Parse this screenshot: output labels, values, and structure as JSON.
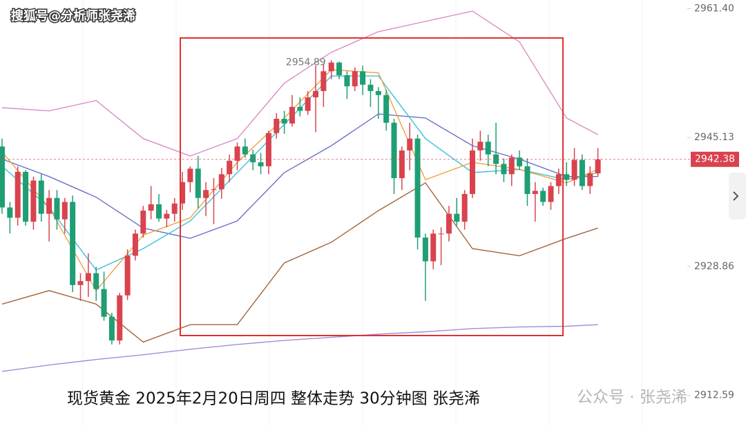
{
  "watermark_top": "搜狐号@分析师张尧浠",
  "caption": "现货黄金 2025年2月20日周四 整体走势 30分钟图 张尧浠",
  "watermark_bottom": "公众号 · 张尧浠",
  "chart_data": {
    "type": "candlestick",
    "up_color": "#d9434e",
    "down_color": "#1f9e74",
    "ylim": [
      2908.7,
      2962.5
    ],
    "yticks": [
      {
        "value": 2961.4,
        "label": "2961.40"
      },
      2945.13,
      2928.86,
      2912.59
    ],
    "last_price": 2942.38,
    "high_annotation": 2954.89,
    "open": [
      2944.0,
      2936.3,
      2935.0,
      2940.8,
      2934.5,
      2939.7,
      2935.5,
      2937.5,
      2934.8,
      2937.0,
      2926.5,
      2927.0,
      2928.0,
      2926.0,
      2922.5,
      2919.5,
      2925.2,
      2930.2,
      2933.0,
      2935.9,
      2936.7,
      2934.9,
      2935.5,
      2936.8,
      2939.5,
      2941.2,
      2937.5,
      2938.5,
      2938.6,
      2940.5,
      2942.2,
      2944.0,
      2943.0,
      2942.0,
      2941.5,
      2945.7,
      2947.5,
      2946.9,
      2949.0,
      2948.5,
      2950.2,
      2951.0,
      2953.5,
      2954.6,
      2953.0,
      2951.6,
      2953.5,
      2951.8,
      2951.0,
      2950.5,
      2947.0,
      2940.0,
      2943.5,
      2945.0,
      2932.5,
      2929.5,
      2933.0,
      2933.0,
      2935.5,
      2934.5,
      2938.0,
      2943.5,
      2944.6,
      2943.0,
      2941.8,
      2940.5,
      2942.6,
      2941.5,
      2938.0,
      2938.4,
      2937.0,
      2939.0,
      2940.5,
      2939.8,
      2942.3,
      2939.0,
      2940.6
    ],
    "high": [
      2945.0,
      2937.0,
      2941.5,
      2941.0,
      2940.2,
      2940.5,
      2938.5,
      2938.5,
      2937.5,
      2937.8,
      2928.0,
      2930.5,
      2928.8,
      2928.2,
      2923.0,
      2925.5,
      2931.0,
      2933.5,
      2936.5,
      2939.0,
      2938.0,
      2936.0,
      2937.5,
      2940.8,
      2941.5,
      2942.8,
      2939.5,
      2940.0,
      2941.3,
      2943.0,
      2944.5,
      2945.0,
      2943.6,
      2943.2,
      2946.0,
      2948.2,
      2948.5,
      2950.5,
      2950.2,
      2951.0,
      2954.2,
      2954.5,
      2954.89,
      2954.7,
      2953.5,
      2954.0,
      2954.2,
      2952.5,
      2951.5,
      2951.2,
      2947.5,
      2944.0,
      2947.0,
      2945.5,
      2933.0,
      2933.5,
      2933.8,
      2936.5,
      2937.5,
      2938.5,
      2945.0,
      2946.0,
      2945.5,
      2947.0,
      2942.5,
      2943.0,
      2943.5,
      2942.5,
      2939.5,
      2938.8,
      2939.5,
      2941.2,
      2942.0,
      2943.8,
      2943.0,
      2941.5,
      2943.8
    ],
    "low": [
      2935.5,
      2933.0,
      2934.0,
      2934.0,
      2933.5,
      2934.5,
      2932.0,
      2933.5,
      2933.0,
      2925.6,
      2924.5,
      2925.0,
      2924.5,
      2922.0,
      2919.0,
      2919.0,
      2924.6,
      2929.6,
      2932.5,
      2934.8,
      2934.5,
      2933.8,
      2934.5,
      2936.0,
      2938.2,
      2936.2,
      2935.2,
      2934.2,
      2937.4,
      2939.5,
      2941.0,
      2942.6,
      2941.0,
      2940.5,
      2940.5,
      2945.0,
      2945.6,
      2946.5,
      2947.8,
      2948.0,
      2945.8,
      2949.0,
      2952.5,
      2952.5,
      2950.0,
      2951.0,
      2950.5,
      2949.0,
      2947.5,
      2946.0,
      2938.0,
      2938.5,
      2941.0,
      2931.0,
      2924.5,
      2928.5,
      2929.0,
      2932.0,
      2934.0,
      2933.5,
      2937.5,
      2942.2,
      2941.5,
      2940.5,
      2939.5,
      2939.0,
      2941.0,
      2936.5,
      2934.5,
      2936.5,
      2936.0,
      2938.0,
      2939.0,
      2939.0,
      2938.5,
      2938.0,
      2940.2
    ],
    "close": [
      2936.3,
      2935.0,
      2940.8,
      2934.5,
      2939.7,
      2935.5,
      2937.5,
      2934.8,
      2937.0,
      2926.5,
      2927.0,
      2928.0,
      2926.0,
      2922.5,
      2919.5,
      2925.2,
      2930.2,
      2933.0,
      2935.9,
      2936.7,
      2934.9,
      2935.5,
      2936.8,
      2939.5,
      2941.2,
      2937.5,
      2938.5,
      2938.6,
      2940.5,
      2942.2,
      2944.0,
      2943.0,
      2942.0,
      2941.5,
      2945.7,
      2947.5,
      2946.9,
      2949.0,
      2948.5,
      2950.2,
      2951.0,
      2953.5,
      2954.6,
      2953.0,
      2951.6,
      2953.5,
      2951.8,
      2951.0,
      2950.5,
      2947.0,
      2940.0,
      2943.5,
      2945.0,
      2932.5,
      2929.5,
      2933.0,
      2933.0,
      2935.5,
      2934.5,
      2938.0,
      2943.5,
      2944.6,
      2943.0,
      2941.8,
      2940.5,
      2942.6,
      2941.5,
      2938.0,
      2938.4,
      2937.0,
      2939.0,
      2940.5,
      2939.8,
      2942.3,
      2939.0,
      2940.6,
      2942.38
    ],
    "line_x": [
      0,
      6,
      12,
      18,
      24,
      30,
      36,
      42,
      48,
      54,
      60,
      66,
      72,
      76
    ],
    "lines": [
      {
        "color": "#d98cc4",
        "values": [
          2948.9,
          2948.5,
          2949.8,
          2945.0,
          2942.8,
          2945.0,
          2952.0,
          2955.9,
          2958.5,
          2959.8,
          2961.1,
          2957.2,
          2947.6,
          2945.5
        ]
      },
      {
        "color": "#a0653c",
        "values": [
          2924.1,
          2925.8,
          2924.1,
          2919.3,
          2921.5,
          2921.5,
          2929.3,
          2931.9,
          2935.9,
          2939.4,
          2931.1,
          2930.2,
          2932.4,
          2933.7
        ]
      },
      {
        "color": "#6b6fc8",
        "values": [
          2942.4,
          2940.2,
          2937.6,
          2933.7,
          2932.4,
          2934.6,
          2940.7,
          2944.1,
          2948.1,
          2947.6,
          2944.1,
          2942.4,
          2940.2,
          2940.2
        ]
      },
      {
        "color": "#a58ad8",
        "values": [
          2915.6,
          2916.4,
          2917.1,
          2917.7,
          2918.4,
          2919.0,
          2919.5,
          2919.9,
          2920.3,
          2920.6,
          2921.0,
          2921.2,
          2921.3,
          2921.5
        ]
      },
      {
        "color": "#3cc0d8",
        "values": [
          2941.5,
          2936.3,
          2928.4,
          2931.1,
          2934.6,
          2940.7,
          2946.8,
          2952.9,
          2952.9,
          2945.0,
          2940.7,
          2941.1,
          2939.8,
          2940.7
        ]
      },
      {
        "color": "#f0a040",
        "values": [
          2943.3,
          2936.3,
          2925.8,
          2932.8,
          2935.0,
          2942.0,
          2947.6,
          2953.7,
          2953.3,
          2939.8,
          2942.0,
          2941.1,
          2939.4,
          2941.1
        ]
      }
    ]
  }
}
